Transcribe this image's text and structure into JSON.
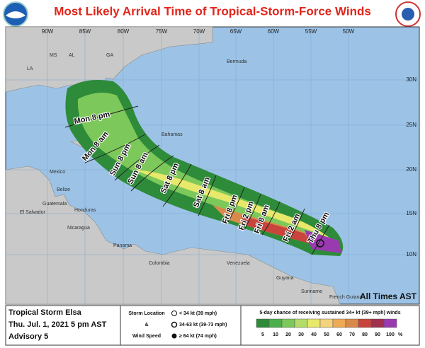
{
  "header": {
    "title": "Most Likely Arrival Time of Tropical-Storm-Force Winds"
  },
  "map": {
    "longitudes": [
      "90W",
      "85W",
      "80W",
      "75W",
      "70W",
      "65W",
      "60W",
      "55W",
      "50W"
    ],
    "latitudes": [
      "30N",
      "25N",
      "20N",
      "15N",
      "10N"
    ],
    "places": [
      "MS",
      "AL",
      "GA",
      "LA",
      "Bermuda",
      "Bahamas",
      "Mexico",
      "Guatemala",
      "Belize",
      "Honduras",
      "El Salvador",
      "Nicaragua",
      "Panama",
      "Colombia",
      "Venezuela",
      "Guyana",
      "Suriname",
      "French Guiana"
    ],
    "arrival_times": [
      "Mon 8 pm",
      "Mon 8 am",
      "Sun 8 pm",
      "Sun 8 am",
      "Sat 8 pm",
      "Sat 8 am",
      "Fri 8 pm",
      "Fri 2 pm",
      "Fri 8 am",
      "Fri 2 am",
      "Thu 8 pm"
    ],
    "time_zone_note": "All Times AST"
  },
  "info": {
    "storm": "Tropical Storm Elsa",
    "date": "Thu. Jul. 1, 2021  5 pm AST",
    "advisory": "Advisory 5"
  },
  "storm_legend": {
    "title_1": "Storm Location",
    "amp": "&",
    "title_2": "Wind Speed",
    "items": [
      "< 34 kt (39 mph)",
      "34-63 kt (39-73 mph)",
      "≥ 64 kt (74 mph)"
    ]
  },
  "probability_legend": {
    "title": "5-day chance of receiving sustained 34+ kt (39+ mph) winds",
    "unit": "%",
    "bins": [
      5,
      10,
      20,
      30,
      40,
      50,
      60,
      70,
      80,
      90,
      100
    ],
    "colors": [
      "#2e8b3a",
      "#4cae4c",
      "#7dc85a",
      "#b4dc6a",
      "#e8e86a",
      "#f2d27a",
      "#eeaa55",
      "#d98a4a",
      "#c8443c",
      "#a03050",
      "#9a3ab0"
    ]
  }
}
